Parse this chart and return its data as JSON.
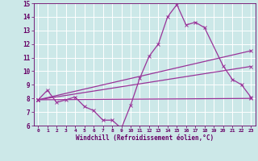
{
  "title": "",
  "xlabel": "Windchill (Refroidissement éolien,°C)",
  "xlim": [
    -0.5,
    23.5
  ],
  "ylim": [
    6,
    15
  ],
  "yticks": [
    6,
    7,
    8,
    9,
    10,
    11,
    12,
    13,
    14,
    15
  ],
  "xticks": [
    0,
    1,
    2,
    3,
    4,
    5,
    6,
    7,
    8,
    9,
    10,
    11,
    12,
    13,
    14,
    15,
    16,
    17,
    18,
    19,
    20,
    21,
    22,
    23
  ],
  "bg_color": "#cce8e8",
  "grid_color": "#ffffff",
  "line_color": "#993399",
  "line1_x": [
    0,
    1,
    2,
    3,
    4,
    5,
    6,
    7,
    8,
    9,
    10,
    11,
    12,
    13,
    14,
    15,
    16,
    17,
    18,
    20,
    21,
    22,
    23
  ],
  "line1_y": [
    7.9,
    8.6,
    7.7,
    7.9,
    8.1,
    7.4,
    7.1,
    6.4,
    6.4,
    5.8,
    7.5,
    9.5,
    11.1,
    12.0,
    14.0,
    14.9,
    13.4,
    13.6,
    13.2,
    10.4,
    9.4,
    9.0,
    8.1
  ],
  "line2_x": [
    0,
    23
  ],
  "line2_y": [
    7.9,
    11.5
  ],
  "line3_x": [
    0,
    23
  ],
  "line3_y": [
    7.9,
    10.35
  ],
  "line4_x": [
    0,
    23
  ],
  "line4_y": [
    7.9,
    8.0
  ]
}
